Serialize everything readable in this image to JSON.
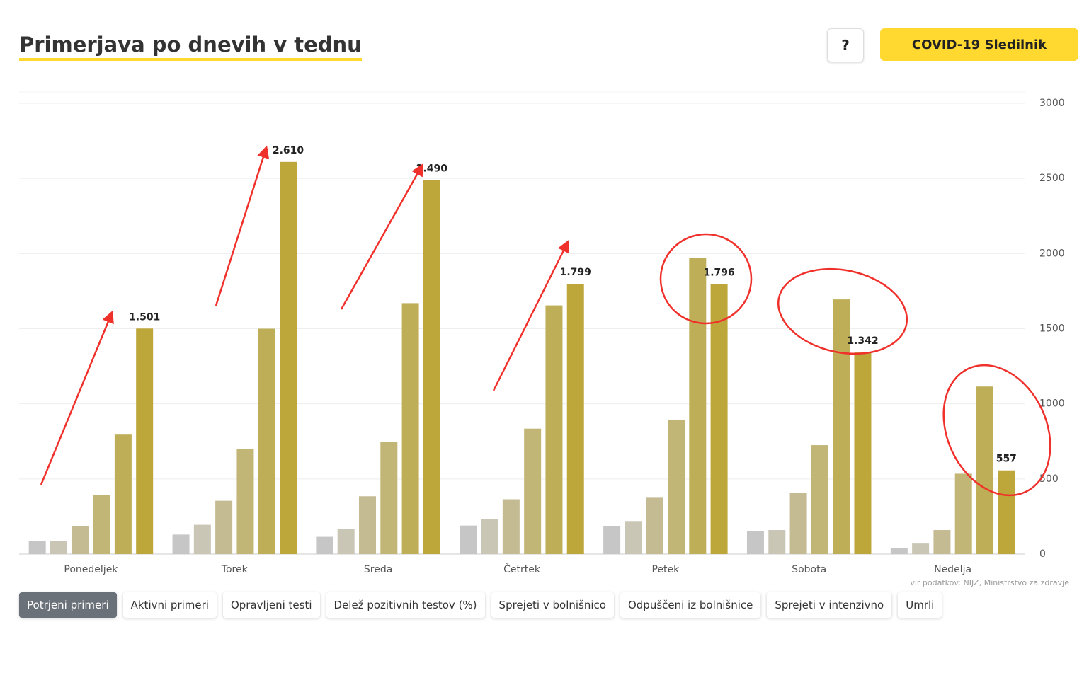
{
  "header": {
    "title": "Primerjava po dnevih v tednu",
    "help": "?",
    "brand": "COVID-19 Sledilnik"
  },
  "chart_data": {
    "type": "bar",
    "categories": [
      "Ponedeljek",
      "Torek",
      "Sreda",
      "Četrtek",
      "Petek",
      "Sobota",
      "Nedelja"
    ],
    "series": [
      {
        "color": "#c6c6c6",
        "values": [
          85,
          130,
          115,
          190,
          185,
          155,
          40
        ]
      },
      {
        "color": "#c9c6b6",
        "values": [
          85,
          195,
          165,
          235,
          220,
          160,
          70
        ]
      },
      {
        "color": "#c4bb93",
        "values": [
          185,
          355,
          385,
          365,
          375,
          405,
          160
        ]
      },
      {
        "color": "#c2b676",
        "values": [
          395,
          700,
          745,
          835,
          895,
          725,
          535
        ]
      },
      {
        "color": "#bfae58",
        "values": [
          795,
          1500,
          1670,
          1655,
          1970,
          1695,
          1115
        ]
      },
      {
        "color": "#bea73a",
        "values": [
          1501,
          2610,
          2490,
          1799,
          1796,
          1342,
          557
        ],
        "value_labels": [
          "1.501",
          "2.610",
          "2.490",
          "1.799",
          "1.796",
          "1.342",
          "557"
        ]
      }
    ],
    "ylim": [
      0,
      3000
    ],
    "yticks": [
      0,
      500,
      1000,
      1500,
      2000,
      2500,
      3000
    ],
    "grid": true
  },
  "source": "vir podatkov: NIJZ, Ministrstvo za zdravje",
  "tabs": [
    "Potrjeni primeri",
    "Aktivni primeri",
    "Opravljeni testi",
    "Delež pozitivnih testov (%)",
    "Sprejeti v bolnišnico",
    "Odpuščeni iz bolnišnice",
    "Sprejeti v intenzivno",
    "Umrli"
  ]
}
